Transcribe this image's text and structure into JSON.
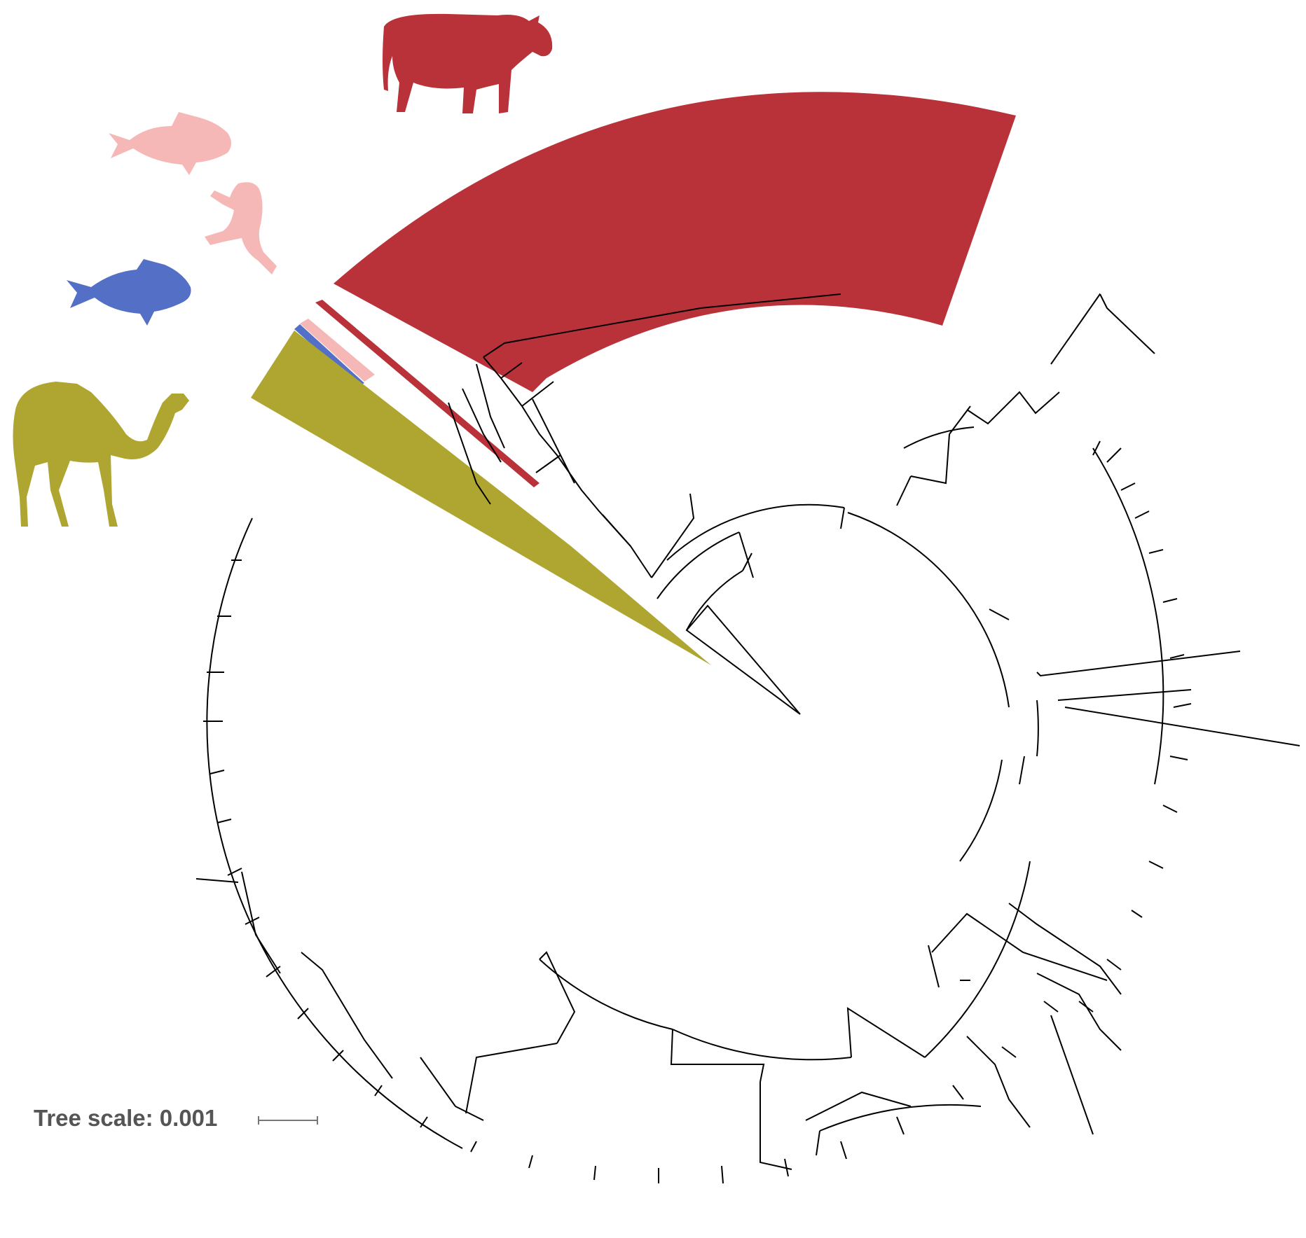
{
  "diagram": {
    "type": "circular phylogenetic tree",
    "tree_scale_label": "Tree scale: 0.001",
    "clades": [
      {
        "host": "cow",
        "color": "#B9323A",
        "icon": "cow-silhouette-icon"
      },
      {
        "host": "fish",
        "color": "#F6B8B6",
        "icon": "fish-silhouette-icon"
      },
      {
        "host": "frog",
        "color": "#F6B8B6",
        "icon": "frog-silhouette-icon"
      },
      {
        "host": "fish",
        "color": "#5470C6",
        "icon": "fish-silhouette-icon"
      },
      {
        "host": "camel",
        "color": "#AFA632",
        "icon": "camel-silhouette-icon"
      }
    ],
    "branch_color": "#000000"
  }
}
